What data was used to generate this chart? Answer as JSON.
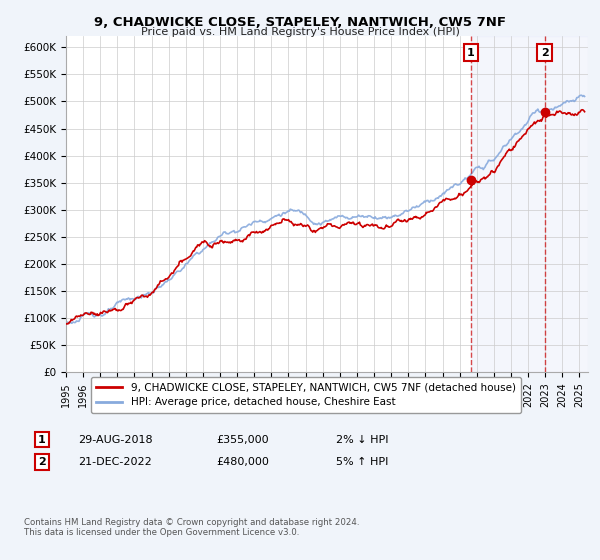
{
  "title": "9, CHADWICKE CLOSE, STAPELEY, NANTWICH, CW5 7NF",
  "subtitle": "Price paid vs. HM Land Registry's House Price Index (HPI)",
  "ylabel_ticks": [
    "£0",
    "£50K",
    "£100K",
    "£150K",
    "£200K",
    "£250K",
    "£300K",
    "£350K",
    "£400K",
    "£450K",
    "£500K",
    "£550K",
    "£600K"
  ],
  "ylim": [
    0,
    620000
  ],
  "xlim_start": 1995.0,
  "xlim_end": 2025.5,
  "xticks": [
    1995,
    1996,
    1997,
    1998,
    1999,
    2000,
    2001,
    2002,
    2003,
    2004,
    2005,
    2006,
    2007,
    2008,
    2009,
    2010,
    2011,
    2012,
    2013,
    2014,
    2015,
    2016,
    2017,
    2018,
    2019,
    2020,
    2021,
    2022,
    2023,
    2024,
    2025
  ],
  "bg_color": "#f0f4fa",
  "plot_bg": "#ffffff",
  "grid_color": "#cccccc",
  "hpi_color": "#88aadd",
  "price_color": "#cc0000",
  "sale1_date": 2018.66,
  "sale1_price": 355000,
  "sale1_label": "1",
  "sale2_date": 2022.97,
  "sale2_price": 480000,
  "sale2_label": "2",
  "legend_line1": "9, CHADWICKE CLOSE, STAPELEY, NANTWICH, CW5 7NF (detached house)",
  "legend_line2": "HPI: Average price, detached house, Cheshire East",
  "annotation1_date": "29-AUG-2018",
  "annotation1_price": "£355,000",
  "annotation1_pct": "2% ↓ HPI",
  "annotation2_date": "21-DEC-2022",
  "annotation2_price": "£480,000",
  "annotation2_pct": "5% ↑ HPI",
  "footnote": "Contains HM Land Registry data © Crown copyright and database right 2024.\nThis data is licensed under the Open Government Licence v3.0."
}
